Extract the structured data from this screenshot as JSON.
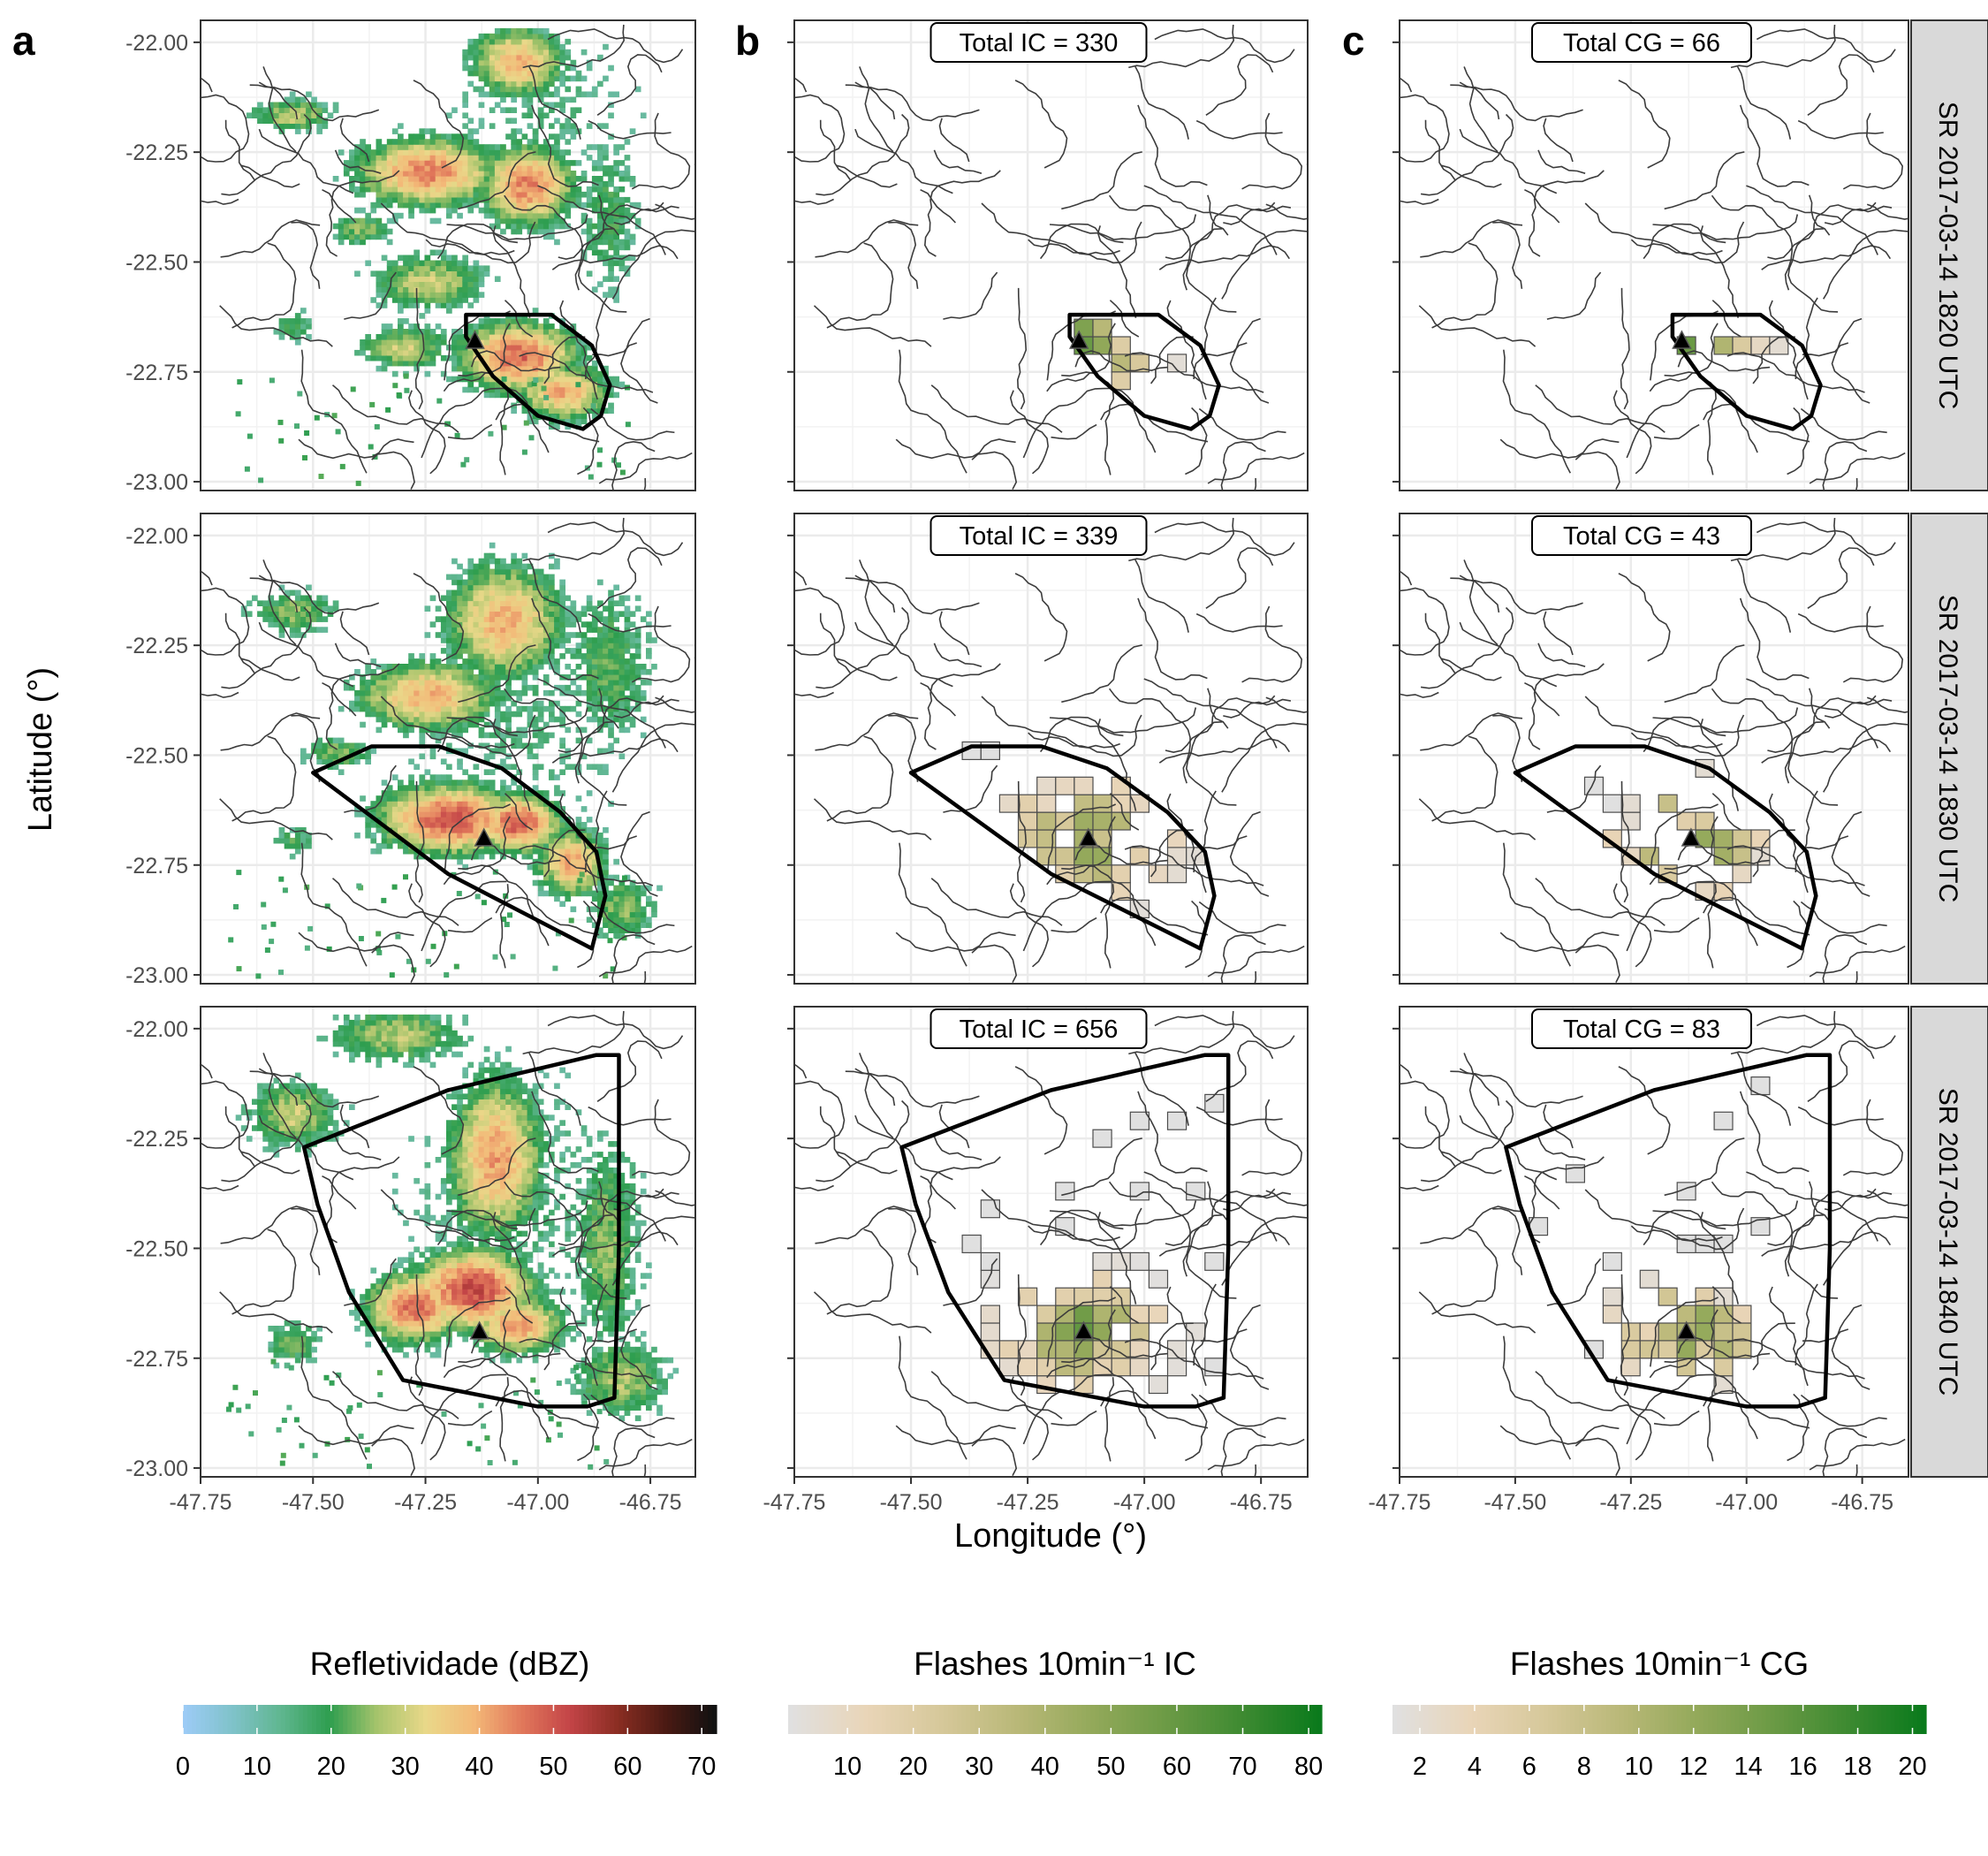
{
  "figure": {
    "panel_letters": [
      "a",
      "b",
      "c"
    ],
    "xlabel": "Longitude (°)",
    "ylabel": "Latitude (°)",
    "x_ticks": [
      "-47.75",
      "-47.50",
      "-47.25",
      "-47.00",
      "-46.75"
    ],
    "y_ticks": [
      "-22.00",
      "-22.25",
      "-22.50",
      "-22.75",
      "-23.00"
    ],
    "xlim": [
      -47.75,
      -46.65
    ],
    "ylim": [
      -23.02,
      -21.95
    ],
    "rows": [
      {
        "strip": "SR 2017-03-14 1820 UTC",
        "ic_total": "Total IC = 330",
        "cg_total": "Total CG = 66",
        "triangle": [
          -47.14,
          -22.68
        ],
        "polygon": [
          [
            -47.16,
            -22.62
          ],
          [
            -47.07,
            -22.62
          ],
          [
            -46.97,
            -22.62
          ],
          [
            -46.88,
            -22.69
          ],
          [
            -46.84,
            -22.78
          ],
          [
            -46.86,
            -22.85
          ],
          [
            -46.9,
            -22.88
          ],
          [
            -47.0,
            -22.85
          ],
          [
            -47.1,
            -22.76
          ],
          [
            -47.16,
            -22.67
          ]
        ]
      },
      {
        "strip": "SR 2017-03-14 1830 UTC",
        "ic_total": "Total IC = 339",
        "cg_total": "Total CG = 43",
        "triangle": [
          -47.12,
          -22.69
        ],
        "polygon": [
          [
            -47.5,
            -22.54
          ],
          [
            -47.37,
            -22.48
          ],
          [
            -47.22,
            -22.48
          ],
          [
            -47.08,
            -22.53
          ],
          [
            -46.95,
            -22.63
          ],
          [
            -46.87,
            -22.72
          ],
          [
            -46.85,
            -22.82
          ],
          [
            -46.88,
            -22.94
          ],
          [
            -47.2,
            -22.77
          ]
        ]
      },
      {
        "strip": "SR 2017-03-14 1840 UTC",
        "ic_total": "Total IC = 656",
        "cg_total": "Total CG = 83",
        "triangle": [
          -47.13,
          -22.69
        ],
        "polygon": [
          [
            -47.52,
            -22.27
          ],
          [
            -47.2,
            -22.14
          ],
          [
            -46.87,
            -22.06
          ],
          [
            -46.82,
            -22.06
          ],
          [
            -46.82,
            -22.2
          ],
          [
            -46.82,
            -22.5
          ],
          [
            -46.83,
            -22.84
          ],
          [
            -46.89,
            -22.86
          ],
          [
            -47.0,
            -22.86
          ],
          [
            -47.3,
            -22.8
          ],
          [
            -47.42,
            -22.6
          ],
          [
            -47.49,
            -22.4
          ]
        ]
      }
    ]
  },
  "legends": [
    {
      "title": "Refletividade (dBZ)",
      "ticks": [
        "0",
        "10",
        "20",
        "30",
        "40",
        "50",
        "60",
        "70"
      ],
      "range": [
        0,
        72
      ],
      "colors": [
        "#9ccbf5",
        "#7fc2c9",
        "#5fb68f",
        "#2e9e4f",
        "#a7c46c",
        "#e9d889",
        "#f3b978",
        "#e1785b",
        "#c34447",
        "#8a2d22",
        "#4a1a13",
        "#111111"
      ]
    },
    {
      "title": "Flashes 10min⁻¹ IC",
      "ticks": [
        "10",
        "20",
        "30",
        "40",
        "50",
        "60",
        "70",
        "80"
      ],
      "range": [
        1,
        82
      ],
      "colors": [
        "#e0e0e0",
        "#e9d5b8",
        "#d6c89a",
        "#b9b878",
        "#93a95a",
        "#6b9a45",
        "#3d8a31",
        "#0a7a1c"
      ]
    },
    {
      "title": "Flashes 10min⁻¹ CG",
      "ticks": [
        "2",
        "4",
        "6",
        "8",
        "10",
        "12",
        "14",
        "16",
        "18",
        "20"
      ],
      "range": [
        1,
        20.5
      ],
      "colors": [
        "#e0e0e0",
        "#e9d5b8",
        "#d6c89a",
        "#b9b878",
        "#93a95a",
        "#6b9a45",
        "#3d8a31",
        "#0a7a1c"
      ]
    }
  ]
}
